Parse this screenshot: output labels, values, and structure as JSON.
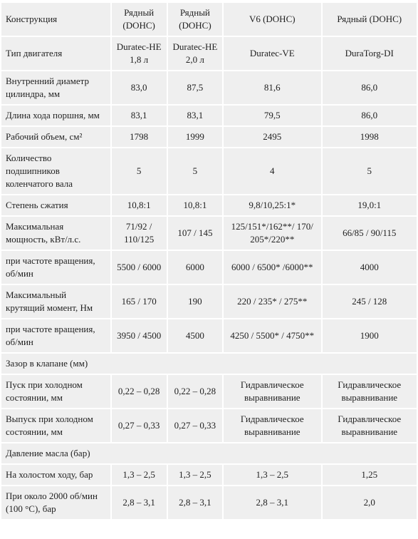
{
  "table": {
    "rows": [
      [
        "Конструкция",
        "Рядный (DOHC)",
        "Рядный (DOHC)",
        "V6 (DOHC)",
        "Рядный (DOHC)"
      ],
      [
        "Тип двигателя",
        "Duratec-HE 1,8 л",
        "Duratec-HE 2,0 л",
        "Duratec-VE",
        "DuraTorg-DI"
      ],
      [
        "Внутренний диаметр цилиндра, мм",
        "83,0",
        "87,5",
        "81,6",
        "86,0"
      ],
      [
        "Длина хода поршня, мм",
        "83,1",
        "83,1",
        "79,5",
        "86,0"
      ],
      [
        "Рабочий объем, см²",
        "1798",
        "1999",
        "2495",
        "1998"
      ],
      [
        "Количество подшипников коленчатого вала",
        "5",
        "5",
        "4",
        "5"
      ],
      [
        "Степень сжатия",
        "10,8:1",
        "10,8:1",
        "9,8/10,25:1*",
        "19,0:1"
      ],
      [
        "Максимальная мощность, кВт/л.с.",
        "71/92 / 110/125",
        "107 / 145",
        "125/151*/162**/ 170/ 205*/220**",
        "66/85 / 90/115"
      ],
      [
        "при частоте вращения, об/мин",
        "5500 / 6000",
        "6000",
        "6000 / 6500* /6000**",
        "4000"
      ],
      [
        "Максимальный крутящий момент, Нм",
        "165 / 170",
        "190",
        "220 / 235* / 275**",
        "245 / 128"
      ],
      [
        "при частоте вращения, об/мин",
        "3950 / 4500",
        "4500",
        "4250 / 5500* / 4750**",
        "1900"
      ],
      [
        "Зазор в клапане (мм)"
      ],
      [
        "Пуск при холодном состоянии, мм",
        "0,22 – 0,28",
        "0,22 – 0,28",
        "Гидравлическое выравнивание",
        "Гидравлическое выравнивание"
      ],
      [
        "Выпуск при холодном состоянии, мм",
        "0,27 – 0,33",
        "0,27 – 0,33",
        "Гидравлическое выравнивание",
        "Гидравлическое выравнивание"
      ],
      [
        "Давление масла (бар)"
      ],
      [
        "На холостом ходу, бар",
        "1,3 – 2,5",
        "1,3 – 2,5",
        "1,3 – 2,5",
        "1,25"
      ],
      [
        "При около 2000 об/мин (100 °С), бар",
        "2,8 – 3,1",
        "2,8 – 3,1",
        "2,8 – 3,1",
        "2,0"
      ]
    ]
  }
}
